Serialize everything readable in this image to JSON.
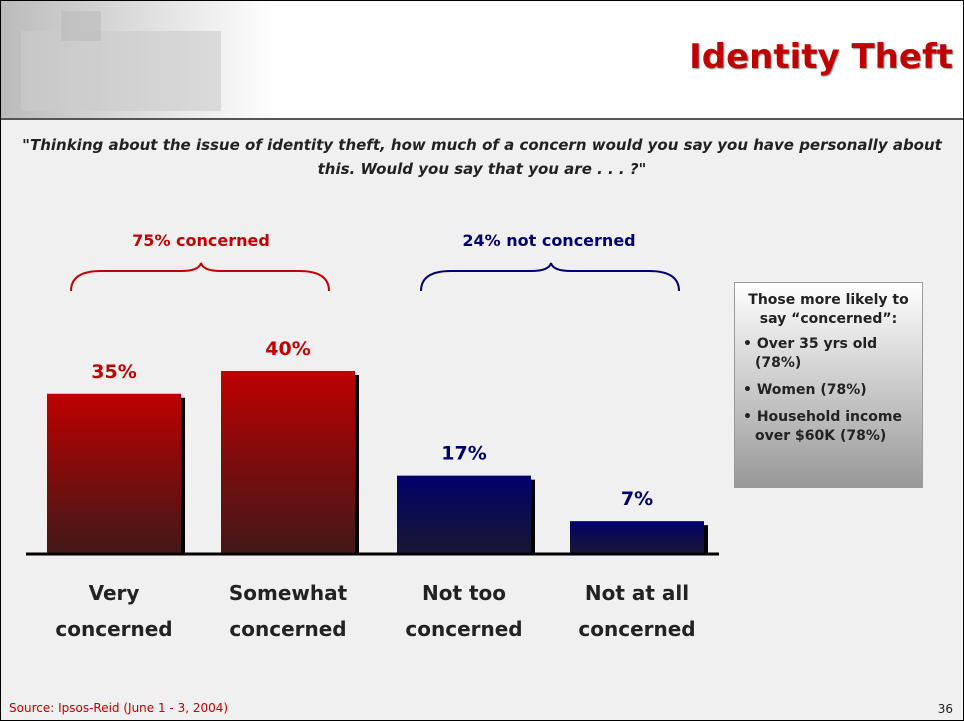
{
  "chart_data": {
    "type": "bar",
    "title": "Identity Theft",
    "subtitle": "\"Thinking about the issue of identity theft, how much of a concern would you say you have personally about this. Would you say that you are . . . ?\"",
    "categories": [
      "Very concerned",
      "Somewhat concerned",
      "Not too concerned",
      "Not at all concerned"
    ],
    "values": [
      35,
      40,
      17,
      7
    ],
    "value_labels": [
      "35%",
      "40%",
      "17%",
      "7%"
    ],
    "colors": [
      "#c00000",
      "#c00000",
      "#00006e",
      "#00006e"
    ],
    "annotations": [
      "75% concerned",
      "24% not concerned"
    ],
    "callout": {
      "title": "Those more likely to say “concerned”:",
      "items": [
        "Over 35 yrs old (78%)",
        "Women (78%)",
        "Household income over $60K (78%)"
      ]
    },
    "source": "Source: Ipsos-Reid (June 1 - 3, 2004)",
    "page_number": "36"
  }
}
